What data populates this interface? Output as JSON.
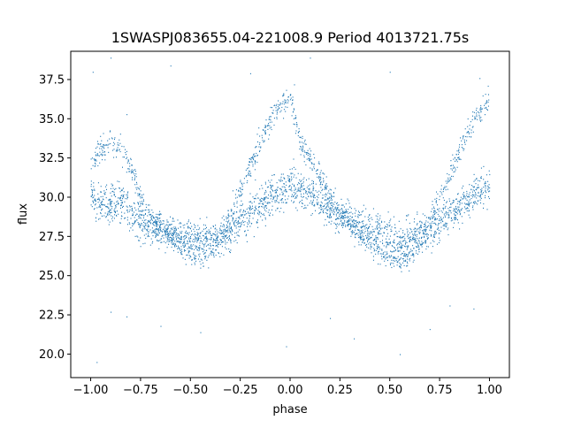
{
  "chart_data": {
    "type": "scatter",
    "title": "1SWASPJ083655.04-221008.9 Period 4013721.75s",
    "xlabel": "phase",
    "ylabel": "flux",
    "xlim": [
      -1.1,
      1.1
    ],
    "ylim": [
      18.5,
      39.3
    ],
    "xticks": [
      -1.0,
      -0.75,
      -0.5,
      -0.25,
      0.0,
      0.25,
      0.5,
      0.75,
      1.0
    ],
    "xtick_labels": [
      "−1.00",
      "−0.75",
      "−0.50",
      "−0.25",
      "0.00",
      "0.25",
      "0.50",
      "0.75",
      "1.00"
    ],
    "yticks": [
      20.0,
      22.5,
      25.0,
      27.5,
      30.0,
      32.5,
      35.0,
      37.5
    ],
    "ytick_labels": [
      "20.0",
      "22.5",
      "25.0",
      "27.5",
      "30.0",
      "32.5",
      "35.0",
      "37.5"
    ],
    "grid": false,
    "marker_color": "#1f77b4",
    "series": [
      {
        "phase": [
          -1.0,
          -0.95,
          -0.9,
          -0.85,
          -0.8,
          -0.75,
          -0.7,
          -0.65,
          -0.6,
          -0.55,
          -0.5,
          -0.45,
          -0.4,
          -0.35,
          -0.3,
          -0.25,
          -0.2,
          -0.15,
          -0.1,
          -0.05,
          0.0,
          0.05,
          0.1,
          0.15,
          0.2,
          0.25,
          0.3,
          0.35,
          0.4,
          0.45,
          0.5,
          0.55,
          0.6,
          0.65,
          0.7,
          0.75,
          0.8,
          0.85,
          0.9,
          0.95,
          1.0
        ],
        "flux_center": [
          30.0,
          29.7,
          29.5,
          29.8,
          29.0,
          28.5,
          28.2,
          28.0,
          27.8,
          27.5,
          27.4,
          27.3,
          27.5,
          27.7,
          28.0,
          28.5,
          29.0,
          29.5,
          30.0,
          30.4,
          30.8,
          30.6,
          30.2,
          29.8,
          29.3,
          28.8,
          28.5,
          28.3,
          28.0,
          27.8,
          27.5,
          27.4,
          27.4,
          27.6,
          28.0,
          28.5,
          29.0,
          29.5,
          30.0,
          30.4,
          30.8
        ],
        "flux_upper": [
          32.3,
          33.0,
          33.5,
          33.0,
          32.0,
          30.0,
          28.8,
          28.0,
          27.5,
          27.0,
          26.5,
          26.2,
          26.5,
          27.5,
          29.0,
          30.5,
          32.0,
          33.5,
          35.0,
          35.8,
          36.3,
          33.5,
          32.5,
          31.5,
          30.0,
          28.8,
          28.3,
          27.8,
          27.0,
          26.5,
          26.2,
          26.0,
          26.3,
          27.0,
          28.5,
          30.0,
          31.5,
          33.0,
          34.5,
          35.5,
          36.3
        ]
      }
    ],
    "outliers": [
      [
        -0.99,
        38.0
      ],
      [
        -0.9,
        38.9
      ],
      [
        -0.82,
        35.3
      ],
      [
        -0.6,
        38.4
      ],
      [
        -0.2,
        37.9
      ],
      [
        0.02,
        37.2
      ],
      [
        0.1,
        38.9
      ],
      [
        0.5,
        38.0
      ],
      [
        0.95,
        37.6
      ],
      [
        -0.97,
        19.5
      ],
      [
        -0.9,
        22.7
      ],
      [
        -0.82,
        22.4
      ],
      [
        -0.45,
        21.4
      ],
      [
        -0.02,
        20.5
      ],
      [
        0.2,
        22.3
      ],
      [
        0.32,
        21.0
      ],
      [
        0.55,
        20.0
      ],
      [
        0.7,
        21.6
      ],
      [
        0.92,
        22.9
      ],
      [
        -0.65,
        21.8
      ],
      [
        0.8,
        23.1
      ]
    ]
  }
}
